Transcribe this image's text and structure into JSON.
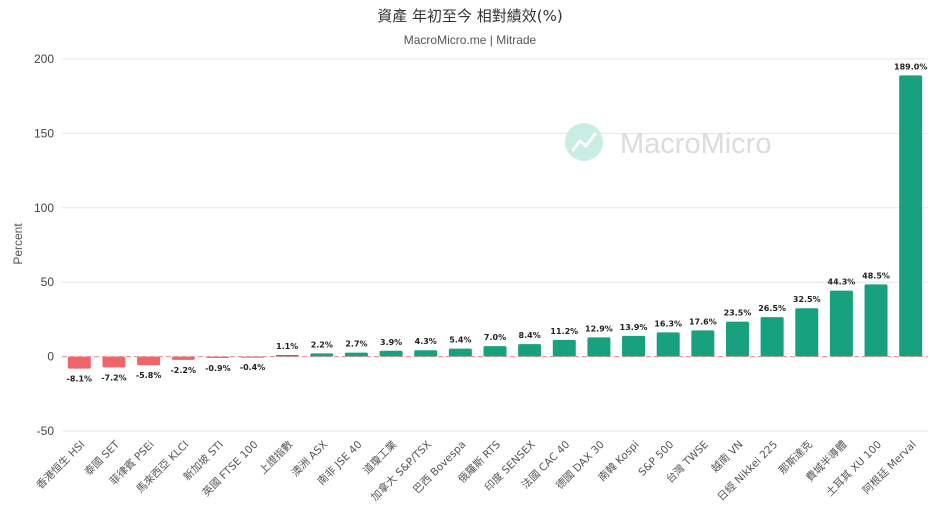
{
  "colors": {
    "positive": "#17a17f",
    "negative": "#f0646a",
    "grid": "#e6e6e6",
    "zero_line": "#e58a8a",
    "watermark": "#dcdcdc",
    "watermark_logo": "#c8eee4"
  },
  "watermark": {
    "text": "MacroMicro",
    "icon": "macromicro-logo-icon"
  },
  "chart_data": {
    "type": "bar",
    "title": "資產 年初至今 相對績效(%)",
    "subtitle": "MacroMicro.me | Mitrade",
    "ylabel": "Percent",
    "xlabel": "",
    "ylim": [
      -50,
      200
    ],
    "yticks": [
      -50,
      0,
      50,
      100,
      150,
      200
    ],
    "grid": true,
    "zero_line_style": "dashed",
    "categories": [
      "香港恒生 HSI",
      "泰國 SET",
      "菲律賓 PSEi",
      "馬來西亞 KLCI",
      "新加坡 STI",
      "英國 FTSE 100",
      "上證指數",
      "澳洲 ASX",
      "南非 JSE 40",
      "道瓊工業",
      "加拿大 S&P/TSX",
      "巴西 Bovespa",
      "俄羅斯 RTS",
      "印度 SENSEX",
      "法國 CAC 40",
      "德國 DAX 30",
      "南韓 Kospi",
      "S&P 500",
      "台灣 TWSE",
      "越南 VN",
      "日經 Nikkei 225",
      "那斯達克",
      "費城半導體",
      "土耳其 XU 100",
      "阿根廷 Merval"
    ],
    "values": [
      -8.1,
      -7.2,
      -5.8,
      -2.2,
      -0.9,
      -0.4,
      1.1,
      2.2,
      2.7,
      3.9,
      4.3,
      5.4,
      7.0,
      8.4,
      11.2,
      12.9,
      13.9,
      16.3,
      17.6,
      23.5,
      26.5,
      32.5,
      44.3,
      48.5,
      189.0
    ],
    "data_labels": [
      "-8.1%",
      "-7.2%",
      "-5.8%",
      "-2.2%",
      "-0.9%",
      "-0.4%",
      "1.1%",
      "2.2%",
      "2.7%",
      "3.9%",
      "4.3%",
      "5.4%",
      "7.0%",
      "8.4%",
      "11.2%",
      "12.9%",
      "13.9%",
      "16.3%",
      "17.6%",
      "23.5%",
      "26.5%",
      "32.5%",
      "44.3%",
      "48.5%",
      "189.0%"
    ]
  }
}
